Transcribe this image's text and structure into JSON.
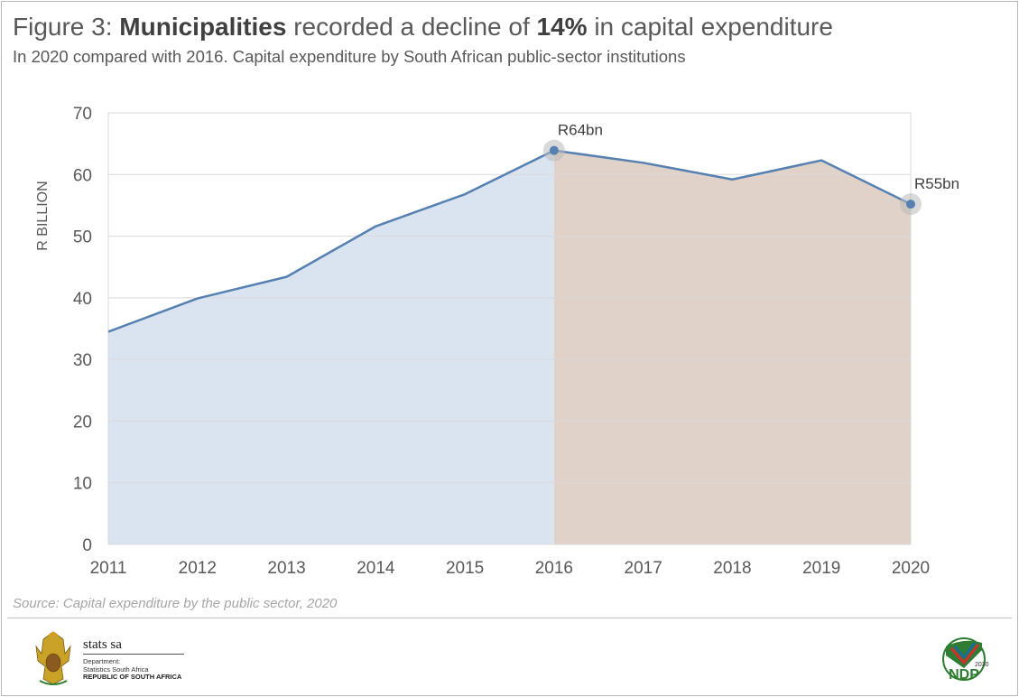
{
  "header": {
    "title_prefix": "Figure 3: ",
    "title_bold_1": "Municipalities",
    "title_mid": " recorded a decline of ",
    "title_bold_2": "14%",
    "title_suffix": " in capital expenditure",
    "subtitle": "In 2020 compared with 2016. Capital expenditure by South African public-sector institutions"
  },
  "chart_data": {
    "type": "area",
    "title": "Municipalities recorded a decline of 14% in capital expenditure",
    "subtitle": "In 2020 compared with 2016. Capital expenditure by South African public-sector institutions",
    "xlabel": "",
    "ylabel": "R BILLION",
    "categories": [
      "2011",
      "2012",
      "2013",
      "2014",
      "2015",
      "2016",
      "2017",
      "2018",
      "2019",
      "2020"
    ],
    "series": [
      {
        "values": [
          34.5,
          39.9,
          43.4,
          51.6,
          56.8,
          63.9,
          61.9,
          59.2,
          62.3,
          55.2
        ]
      }
    ],
    "ylim": [
      0,
      70
    ],
    "yticks": [
      0,
      10,
      20,
      30,
      40,
      50,
      60,
      70
    ],
    "grid": true,
    "legend": "none",
    "shading": [
      {
        "from": "2011",
        "to": "2016",
        "color": "#dae4f1"
      },
      {
        "from": "2016",
        "to": "2020",
        "color": "#e0d2c8"
      }
    ],
    "line_color": "#5580b1",
    "annotations": [
      {
        "x": "2016",
        "text": "R64bn"
      },
      {
        "x": "2020",
        "text": "R55bn"
      }
    ]
  },
  "footer": {
    "source": "Source: Capital expenditure by the public sector, 2020",
    "org_name": "stats sa",
    "org_dept_1": "Department:",
    "org_dept_2": "Statistics South Africa",
    "org_country": "REPUBLIC OF SOUTH AFRICA",
    "ndp_text": "NDP",
    "ndp_year": "2030"
  }
}
